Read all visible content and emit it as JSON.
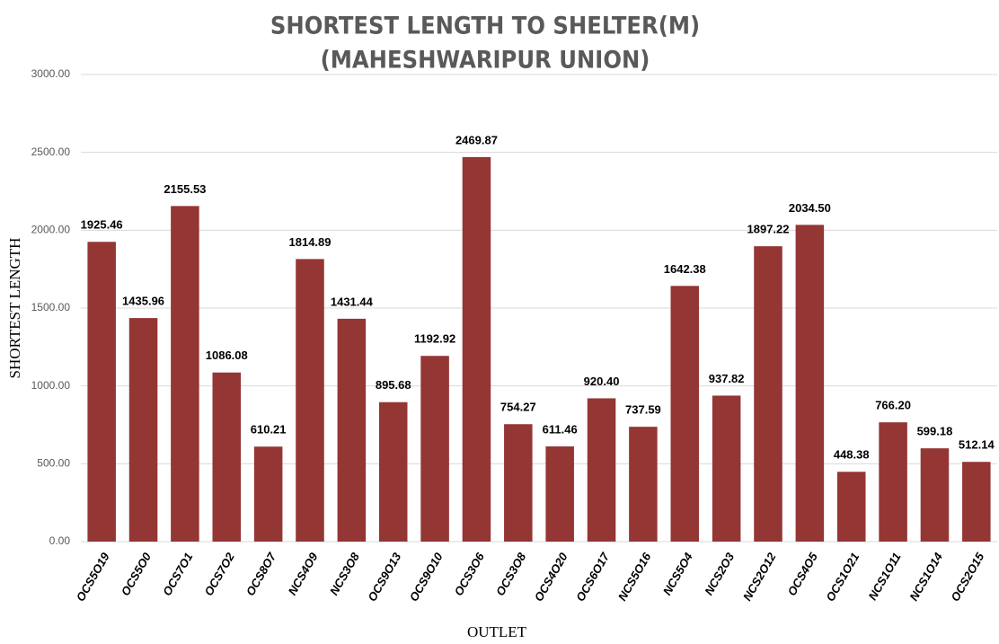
{
  "chart_data": {
    "type": "bar",
    "title": "SHORTEST LENGTH TO SHELTER(M)",
    "subtitle": "(MAHESHWARIPUR UNION)",
    "x_label": "OUTLET",
    "y_label": "SHORTEST LENGTH",
    "categories": [
      "OCS5O19",
      "OCS5O0",
      "OCS7O1",
      "OCS7O2",
      "OCS8O7",
      "NCS4O9",
      "NCS3O8",
      "OCS9O13",
      "OCS9O10",
      "OCS3O6",
      "OCS3O8",
      "OCS4O20",
      "OCS6O17",
      "NCS5O16",
      "NCS5O4",
      "NCS2O3",
      "NCS2O12",
      "OCS4O5",
      "OCS1O21",
      "NCS1O11",
      "NCS1O14",
      "OCS2O15"
    ],
    "values": [
      1925.46,
      1435.96,
      2155.53,
      1086.08,
      610.21,
      1814.89,
      1431.44,
      895.68,
      1192.92,
      2469.87,
      754.27,
      611.46,
      920.4,
      737.59,
      1642.38,
      937.82,
      1897.22,
      2034.5,
      448.38,
      766.2,
      599.18,
      512.14
    ],
    "value_labels": [
      "1925.46",
      "1435.96",
      "2155.53",
      "1086.08",
      "610.21",
      "1814.89",
      "1431.44",
      "895.68",
      "1192.92",
      "2469.87",
      "754.27",
      "611.46",
      "920.40",
      "737.59",
      "1642.38",
      "937.82",
      "1897.22",
      "2034.50",
      "448.38",
      "766.20",
      "599.18",
      "512.14"
    ],
    "color": "#943634",
    "ylim": [
      0,
      3000
    ],
    "yticks": [
      {
        "value": 0,
        "label": "0.00"
      },
      {
        "value": 500,
        "label": "500.00"
      },
      {
        "value": 1000,
        "label": "1000.00"
      },
      {
        "value": 1500,
        "label": "1500.00"
      },
      {
        "value": 2000,
        "label": "2000.00"
      },
      {
        "value": 2500,
        "label": "2500.00"
      },
      {
        "value": 3000,
        "label": "3000.00"
      }
    ],
    "grid": true
  }
}
